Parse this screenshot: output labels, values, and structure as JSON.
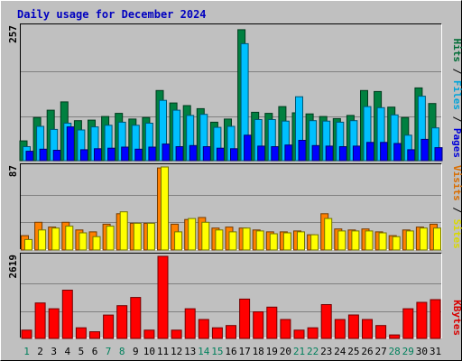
{
  "chart_data": [
    {
      "type": "bar",
      "title": "Daily usage for December 2024",
      "categories": [
        "1",
        "2",
        "3",
        "4",
        "5",
        "6",
        "7",
        "8",
        "9",
        "10",
        "11",
        "12",
        "13",
        "14",
        "15",
        "16",
        "17",
        "18",
        "19",
        "20",
        "21",
        "22",
        "23",
        "24",
        "25",
        "26",
        "27",
        "28",
        "29",
        "30",
        "31"
      ],
      "weekend_days": [
        "1",
        "7",
        "8",
        "14",
        "15",
        "21",
        "22",
        "28",
        "29"
      ],
      "ymax_label": "257",
      "ylim": [
        0,
        257
      ],
      "grid": true,
      "legend": {
        "items": [
          "Pages",
          "Files",
          "Hits"
        ],
        "separator": " / ",
        "position": "right"
      },
      "series": [
        {
          "name": "Hits",
          "color": "#008040",
          "values": [
            38,
            83,
            97,
            113,
            77,
            78,
            85,
            91,
            80,
            83,
            135,
            111,
            106,
            100,
            74,
            80,
            252,
            93,
            91,
            104,
            92,
            90,
            85,
            81,
            87,
            135,
            133,
            103,
            83,
            140,
            110
          ]
        },
        {
          "name": "Files",
          "color": "#00c0ff",
          "values": [
            27,
            66,
            60,
            72,
            59,
            65,
            68,
            74,
            68,
            72,
            116,
            97,
            87,
            89,
            64,
            66,
            225,
            79,
            79,
            76,
            123,
            77,
            76,
            74,
            77,
            104,
            102,
            88,
            49,
            124,
            63
          ]
        },
        {
          "name": "Pages",
          "color": "#0000ff",
          "values": [
            18,
            22,
            20,
            65,
            21,
            23,
            24,
            26,
            22,
            26,
            32,
            27,
            29,
            27,
            24,
            23,
            49,
            28,
            27,
            30,
            39,
            29,
            28,
            27,
            28,
            35,
            35,
            33,
            21,
            41,
            25
          ]
        }
      ]
    },
    {
      "type": "bar",
      "ymax_label": "87",
      "ylim": [
        0,
        87
      ],
      "grid": true,
      "legend": {
        "items": [
          "Sites",
          "Visits"
        ],
        "separator": " / ",
        "position": "right"
      },
      "series": [
        {
          "name": "Visits",
          "color": "#ff8000",
          "values": [
            15,
            29,
            24,
            29,
            21,
            19,
            27,
            38,
            28,
            28,
            86,
            27,
            32,
            34,
            23,
            24,
            23,
            21,
            19,
            19,
            20,
            16,
            38,
            22,
            21,
            22,
            19,
            15,
            21,
            24,
            27
          ]
        },
        {
          "name": "Sites",
          "color": "#ffff00",
          "values": [
            11,
            21,
            23,
            25,
            18,
            14,
            25,
            40,
            28,
            28,
            87,
            19,
            33,
            29,
            21,
            19,
            23,
            20,
            17,
            18,
            19,
            16,
            33,
            20,
            20,
            20,
            18,
            14,
            20,
            23,
            23
          ]
        }
      ]
    },
    {
      "type": "bar",
      "ymax_label": "2619",
      "ylim": [
        0,
        2619
      ],
      "grid": true,
      "legend": {
        "items": [
          "KBytes"
        ],
        "separator": "",
        "position": "right"
      },
      "series": [
        {
          "name": "KBytes",
          "color": "#ff0000",
          "values": [
            264,
            1132,
            947,
            1540,
            340,
            212,
            744,
            1044,
            1308,
            264,
            2619,
            264,
            947,
            604,
            340,
            411,
            1255,
            849,
            1000,
            604,
            264,
            340,
            1080,
            604,
            749,
            604,
            411,
            112,
            947,
            1152,
            1238
          ]
        }
      ]
    }
  ]
}
